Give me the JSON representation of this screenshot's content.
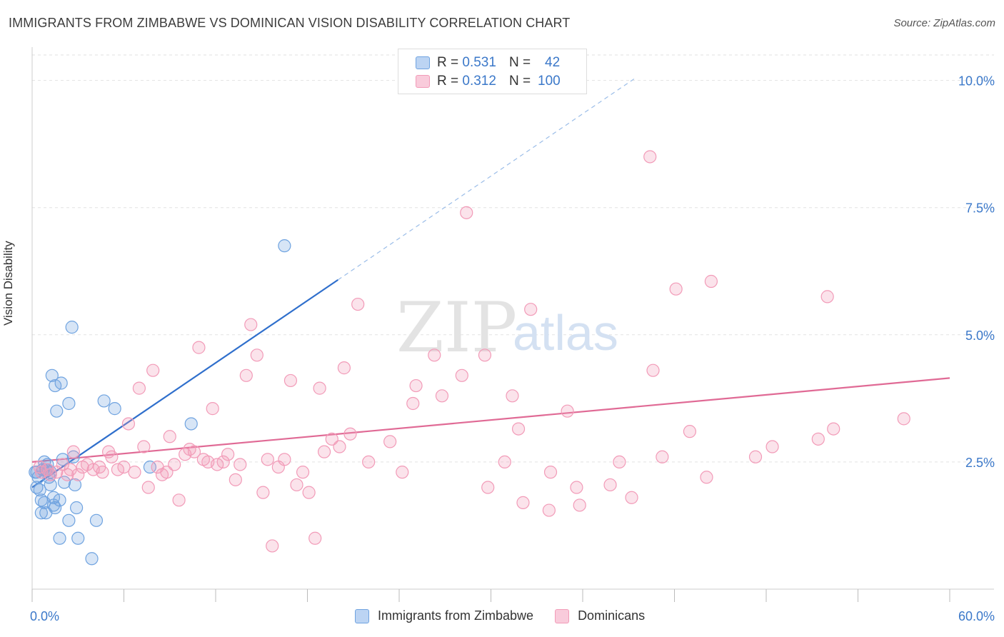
{
  "title": "IMMIGRANTS FROM ZIMBABWE VS DOMINICAN VISION DISABILITY CORRELATION CHART",
  "source": "Source: ZipAtlas.com",
  "watermark": {
    "zip": "ZIP",
    "atlas": "atlas"
  },
  "legend_top": [
    {
      "r_label": "R =",
      "r_value": "0.531",
      "n_label": "N =",
      "n_value": "42"
    },
    {
      "r_label": "R =",
      "r_value": "0.312",
      "n_label": "N =",
      "n_value": "100"
    }
  ],
  "chart_data": {
    "type": "scatter",
    "title": "IMMIGRANTS FROM ZIMBABWE VS DOMINICAN VISION DISABILITY CORRELATION CHART",
    "xlabel": "",
    "ylabel": "Vision Disability",
    "xlim": [
      0,
      60
    ],
    "ylim": [
      0,
      10.5
    ],
    "x_tick_labels": [
      "0.0%",
      "60.0%"
    ],
    "y_ticks": [
      2.5,
      5.0,
      7.5,
      10.0
    ],
    "y_tick_labels": [
      "2.5%",
      "5.0%",
      "7.5%",
      "10.0%"
    ],
    "grid": true,
    "legend_position": "bottom-center",
    "colors": {
      "zimbabwe": "#6fa3e0",
      "dominican": "#f29bb8",
      "zimbabwe_line": "#2f6fcc",
      "dominican_line": "#e06a95",
      "axis_text": "#3b78c9"
    },
    "series": [
      {
        "name": "Immigrants from Zimbabwe",
        "color": "#6fa3e0",
        "trend": {
          "x0": 0,
          "y0": 2.0,
          "x1": 20,
          "y1": 6.08,
          "dashed_to_x": 39.5
        },
        "points": [
          [
            0.2,
            2.3
          ],
          [
            0.3,
            2.0
          ],
          [
            0.4,
            2.2
          ],
          [
            0.5,
            1.95
          ],
          [
            0.6,
            1.75
          ],
          [
            0.6,
            1.5
          ],
          [
            0.7,
            2.35
          ],
          [
            0.8,
            1.7
          ],
          [
            0.8,
            2.5
          ],
          [
            0.9,
            1.5
          ],
          [
            0.9,
            2.35
          ],
          [
            1.0,
            2.45
          ],
          [
            1.1,
            2.2
          ],
          [
            1.2,
            2.05
          ],
          [
            1.2,
            2.3
          ],
          [
            1.3,
            4.2
          ],
          [
            1.4,
            1.65
          ],
          [
            1.4,
            1.8
          ],
          [
            1.5,
            4.0
          ],
          [
            1.5,
            1.6
          ],
          [
            1.6,
            3.5
          ],
          [
            1.8,
            1.0
          ],
          [
            1.8,
            1.75
          ],
          [
            1.9,
            4.05
          ],
          [
            2.0,
            2.55
          ],
          [
            2.1,
            2.1
          ],
          [
            2.4,
            3.65
          ],
          [
            2.4,
            1.35
          ],
          [
            2.6,
            5.15
          ],
          [
            2.7,
            2.6
          ],
          [
            2.8,
            2.05
          ],
          [
            2.9,
            1.6
          ],
          [
            3.0,
            1.0
          ],
          [
            3.9,
            0.6
          ],
          [
            4.2,
            1.35
          ],
          [
            4.7,
            3.7
          ],
          [
            5.4,
            3.55
          ],
          [
            7.7,
            2.4
          ],
          [
            10.4,
            3.25
          ],
          [
            16.5,
            6.75
          ],
          [
            0.3,
            2.3
          ],
          [
            1.0,
            2.35
          ]
        ]
      },
      {
        "name": "Dominicans",
        "color": "#f29bb8",
        "trend": {
          "x0": 0,
          "y0": 2.5,
          "x1": 60,
          "y1": 4.15
        },
        "points": [
          [
            0.5,
            2.4
          ],
          [
            0.6,
            2.3
          ],
          [
            1.0,
            2.35
          ],
          [
            1.2,
            2.25
          ],
          [
            1.6,
            2.3
          ],
          [
            2.0,
            2.45
          ],
          [
            2.3,
            2.25
          ],
          [
            2.5,
            2.35
          ],
          [
            2.7,
            2.7
          ],
          [
            3.0,
            2.25
          ],
          [
            3.3,
            2.4
          ],
          [
            3.6,
            2.45
          ],
          [
            4.0,
            2.35
          ],
          [
            4.4,
            2.4
          ],
          [
            4.6,
            2.3
          ],
          [
            5.0,
            2.7
          ],
          [
            5.2,
            2.6
          ],
          [
            5.6,
            2.35
          ],
          [
            6.0,
            2.4
          ],
          [
            6.3,
            3.25
          ],
          [
            6.7,
            2.3
          ],
          [
            7.0,
            3.95
          ],
          [
            7.3,
            2.8
          ],
          [
            7.6,
            2.0
          ],
          [
            7.9,
            4.3
          ],
          [
            8.2,
            2.4
          ],
          [
            8.5,
            2.25
          ],
          [
            8.8,
            2.3
          ],
          [
            9.0,
            3.0
          ],
          [
            9.3,
            2.45
          ],
          [
            9.6,
            1.75
          ],
          [
            10.0,
            2.65
          ],
          [
            10.3,
            2.75
          ],
          [
            10.6,
            2.7
          ],
          [
            10.9,
            4.75
          ],
          [
            11.2,
            2.55
          ],
          [
            11.5,
            2.5
          ],
          [
            11.8,
            3.55
          ],
          [
            12.1,
            2.45
          ],
          [
            12.5,
            2.5
          ],
          [
            12.8,
            2.65
          ],
          [
            13.3,
            2.15
          ],
          [
            13.6,
            2.45
          ],
          [
            14.0,
            4.2
          ],
          [
            14.3,
            5.2
          ],
          [
            14.7,
            4.6
          ],
          [
            15.1,
            1.9
          ],
          [
            15.4,
            2.55
          ],
          [
            15.7,
            0.85
          ],
          [
            16.1,
            2.4
          ],
          [
            16.5,
            2.55
          ],
          [
            16.9,
            4.1
          ],
          [
            17.3,
            2.05
          ],
          [
            17.7,
            2.3
          ],
          [
            18.1,
            1.9
          ],
          [
            18.5,
            1.0
          ],
          [
            18.8,
            3.95
          ],
          [
            19.1,
            2.7
          ],
          [
            19.6,
            2.95
          ],
          [
            20.1,
            2.8
          ],
          [
            20.4,
            4.35
          ],
          [
            20.8,
            3.05
          ],
          [
            21.3,
            5.6
          ],
          [
            22.0,
            2.5
          ],
          [
            23.4,
            2.9
          ],
          [
            24.2,
            2.3
          ],
          [
            24.9,
            3.65
          ],
          [
            25.1,
            4.0
          ],
          [
            26.3,
            4.6
          ],
          [
            26.8,
            3.8
          ],
          [
            28.1,
            4.2
          ],
          [
            28.4,
            7.4
          ],
          [
            29.6,
            4.6
          ],
          [
            29.8,
            2.0
          ],
          [
            30.9,
            2.5
          ],
          [
            31.4,
            3.8
          ],
          [
            31.8,
            3.15
          ],
          [
            32.1,
            1.7
          ],
          [
            32.6,
            5.5
          ],
          [
            33.8,
            1.55
          ],
          [
            33.9,
            2.3
          ],
          [
            35.0,
            3.5
          ],
          [
            35.6,
            2.0
          ],
          [
            35.8,
            1.65
          ],
          [
            37.8,
            2.05
          ],
          [
            38.4,
            2.5
          ],
          [
            39.2,
            1.8
          ],
          [
            40.4,
            8.5
          ],
          [
            40.6,
            4.3
          ],
          [
            41.2,
            2.6
          ],
          [
            42.1,
            5.9
          ],
          [
            43.0,
            3.1
          ],
          [
            44.1,
            2.2
          ],
          [
            44.4,
            6.05
          ],
          [
            47.3,
            2.6
          ],
          [
            48.4,
            2.8
          ],
          [
            51.4,
            2.95
          ],
          [
            52.0,
            5.75
          ],
          [
            52.4,
            3.15
          ],
          [
            57.0,
            3.35
          ]
        ]
      }
    ]
  }
}
